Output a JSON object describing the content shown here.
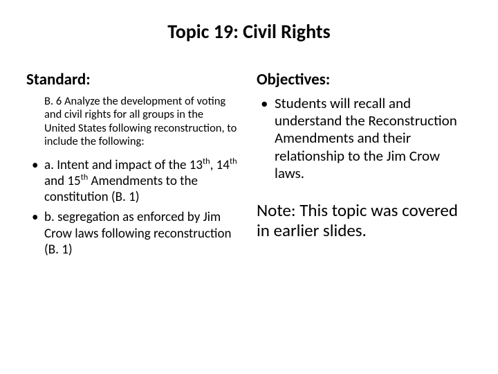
{
  "title": "Topic 19: Civil Rights",
  "left": {
    "heading": "Standard:",
    "intro": "B. 6  Analyze the development of voting and civil rights for all groups in the United States following reconstruction, to include the following:",
    "items": [
      "a. Intent and impact of the 13th, 14th and 15th Amendments to the constitution (B. 1)",
      "b. segregation as enforced by Jim Crow laws following reconstruction (B. 1)"
    ]
  },
  "right": {
    "heading": "Objectives:",
    "items": [
      "Students will recall and understand the Reconstruction Amendments and their relationship to the Jim Crow laws."
    ],
    "note": "Note:  This topic was covered in earlier slides."
  },
  "style": {
    "background": "#ffffff",
    "text_color": "#000000",
    "title_fontsize": 28,
    "heading_fontsize": 23,
    "intro_fontsize": 16.5,
    "left_item_fontsize": 19,
    "right_item_fontsize": 21,
    "note_fontsize": 25,
    "font_family": "Calibri"
  }
}
